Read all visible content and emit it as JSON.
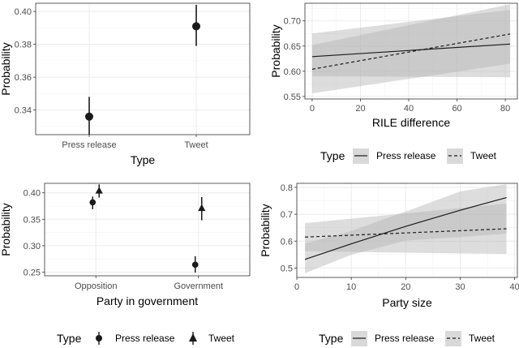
{
  "chart_data": [
    {
      "type": "scatter",
      "panel": "top-left",
      "xlabel": "Type",
      "ylabel": "Probability",
      "categories": [
        "Press release",
        "Tweet"
      ],
      "ylim": [
        0.325,
        0.405
      ],
      "yticks": [
        0.34,
        0.36,
        0.38,
        0.4
      ],
      "yticklabels": [
        "0.34",
        "0.36",
        "0.38",
        "0.40"
      ],
      "points": [
        {
          "category": "Press release",
          "y": 0.336,
          "lo": 0.325,
          "hi": 0.348
        },
        {
          "category": "Tweet",
          "y": 0.391,
          "lo": 0.379,
          "hi": 0.404
        }
      ],
      "grid": true
    },
    {
      "type": "line",
      "panel": "top-right",
      "xlabel": "RILE difference",
      "ylabel": "Probability",
      "xlim": [
        -3,
        85
      ],
      "ylim": [
        0.545,
        0.735
      ],
      "xticks": [
        0,
        20,
        40,
        60,
        80
      ],
      "xticklabels": [
        "0",
        "20",
        "40",
        "60",
        "80"
      ],
      "yticks": [
        0.55,
        0.6,
        0.65,
        0.7
      ],
      "yticklabels": [
        "0.55",
        "0.60",
        "0.65",
        "0.70"
      ],
      "series": [
        {
          "name": "Press release",
          "dash": "solid",
          "x": [
            0,
            82
          ],
          "y": [
            0.629,
            0.654
          ],
          "lo": [
            0.59,
            0.588
          ],
          "hi": [
            0.675,
            0.722
          ]
        },
        {
          "name": "Tweet",
          "dash": "dashed",
          "x": [
            0,
            82
          ],
          "y": [
            0.604,
            0.674
          ],
          "lo": [
            0.556,
            0.615
          ],
          "hi": [
            0.652,
            0.733
          ]
        }
      ],
      "legend": {
        "title": "Type",
        "position": "bottom",
        "items": [
          "Press release",
          "Tweet"
        ]
      },
      "grid": true
    },
    {
      "type": "scatter",
      "panel": "bottom-left",
      "xlabel": "Party in government",
      "ylabel": "Probability",
      "categories": [
        "Opposition",
        "Government"
      ],
      "ylim": [
        0.243,
        0.418
      ],
      "yticks": [
        0.25,
        0.3,
        0.35,
        0.4
      ],
      "yticklabels": [
        "0.25",
        "0.30",
        "0.35",
        "0.40"
      ],
      "series": [
        {
          "name": "Press release",
          "marker": "circle",
          "points": [
            {
              "category": "Opposition",
              "y": 0.382,
              "lo": 0.369,
              "hi": 0.393
            },
            {
              "category": "Government",
              "y": 0.264,
              "lo": 0.249,
              "hi": 0.28
            }
          ]
        },
        {
          "name": "Tweet",
          "marker": "triangle",
          "points": [
            {
              "category": "Opposition",
              "y": 0.404,
              "lo": 0.391,
              "hi": 0.416
            },
            {
              "category": "Government",
              "y": 0.371,
              "lo": 0.348,
              "hi": 0.392
            }
          ]
        }
      ],
      "legend": {
        "title": "Type",
        "position": "bottom",
        "items": [
          "Press release",
          "Tweet"
        ]
      },
      "grid": true
    },
    {
      "type": "line",
      "panel": "bottom-right",
      "xlabel": "Party size",
      "ylabel": "Probability",
      "xlim": [
        0,
        40.5
      ],
      "ylim": [
        0.465,
        0.815
      ],
      "xticks": [
        0,
        10,
        20,
        30,
        40
      ],
      "xticklabels": [
        "0",
        "10",
        "20",
        "30",
        "40"
      ],
      "yticks": [
        0.5,
        0.6,
        0.7,
        0.8
      ],
      "yticklabels": [
        "0.5",
        "0.6",
        "0.7",
        "0.8"
      ],
      "series": [
        {
          "name": "Press release",
          "dash": "solid",
          "x": [
            1.5,
            10,
            20,
            30,
            38.5
          ],
          "y": [
            0.532,
            0.59,
            0.655,
            0.715,
            0.762
          ],
          "lo": [
            0.481,
            0.549,
            0.602,
            0.615,
            0.628
          ],
          "hi": [
            0.591,
            0.638,
            0.71,
            0.785,
            0.812
          ]
        },
        {
          "name": "Tweet",
          "dash": "dashed",
          "x": [
            1.5,
            38.5
          ],
          "y": [
            0.615,
            0.646
          ],
          "lo": [
            0.562,
            0.552
          ],
          "hi": [
            0.667,
            0.74
          ]
        }
      ],
      "legend": {
        "title": "Type",
        "position": "bottom",
        "items": [
          "Press release",
          "Tweet"
        ]
      },
      "grid": true
    }
  ],
  "colors": {
    "band": "#b3b3b3",
    "band_opacity": "0.45",
    "ink": "#1a1a1a",
    "legend_key_bg": "#d9d9d9"
  }
}
